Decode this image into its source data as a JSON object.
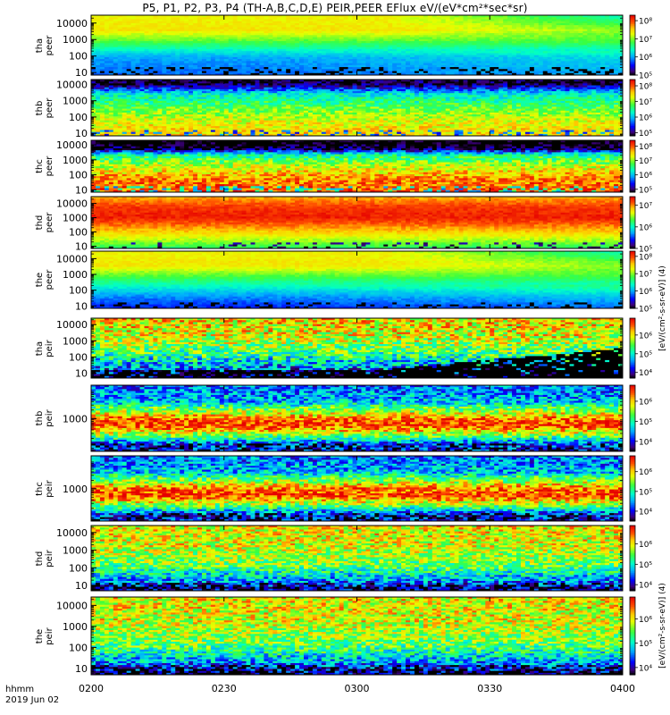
{
  "title": "P5, P1, P2, P3, P4 (TH-A,B,C,D,E) PEIR,PEER EFlux eV/(eV*cm²*sec*sr)",
  "footer": {
    "time_label": "hhmm",
    "date_label": "2019 Jun 02"
  },
  "colorbar_label_peer": "[eV/(cm²-s-sr-eV)] (4)",
  "colorbar_label_peir": "[eV/(cm²-s-sr-eV)] (4)",
  "chart_data": {
    "type": "heatmap",
    "x_axis": {
      "ticks": [
        "0200",
        "0230",
        "0300",
        "0330",
        "0400"
      ],
      "range": [
        "0200",
        "0400"
      ]
    },
    "y_scale": "log",
    "colorbar_scale": "log",
    "panels": [
      {
        "id": "tha_peer",
        "label": "tha\npeer",
        "yticks": [
          "10",
          "100",
          "1000",
          "10000"
        ],
        "ylim": [
          7,
          30000
        ],
        "cbar_ticks": [
          "10⁵",
          "10⁶",
          "10⁷",
          "10⁸"
        ],
        "cbar_range": [
          5,
          8.3
        ],
        "bands": [
          [
            0,
            5.8
          ],
          [
            0.3,
            6.0
          ],
          [
            0.55,
            6.8
          ],
          [
            0.75,
            7.4
          ],
          [
            1,
            7.3
          ]
        ],
        "decay": 0.9,
        "noise": 0.05
      },
      {
        "id": "thb_peer",
        "label": "thb\npeer",
        "yticks": [
          "10",
          "100",
          "1000",
          "10000"
        ],
        "ylim": [
          7,
          20000
        ],
        "cbar_ticks": [
          "10⁵",
          "10⁶",
          "10⁷",
          "10⁸"
        ],
        "cbar_range": [
          4.8,
          8.4
        ],
        "bands": [
          [
            0,
            7.5
          ],
          [
            0.25,
            7.3
          ],
          [
            0.5,
            6.8
          ],
          [
            0.75,
            6.2
          ],
          [
            0.86,
            5.3
          ],
          [
            0.92,
            4.9
          ],
          [
            1,
            4.8
          ]
        ],
        "decay": 0,
        "noise": 0.2
      },
      {
        "id": "thc_peer",
        "label": "thc\npeer",
        "yticks": [
          "10",
          "100",
          "1000",
          "10000"
        ],
        "ylim": [
          7,
          20000
        ],
        "cbar_ticks": [
          "10⁵",
          "10⁶",
          "10⁷",
          "10⁸"
        ],
        "cbar_range": [
          4.8,
          8.4
        ],
        "bands": [
          [
            0,
            8.0
          ],
          [
            0.25,
            7.8
          ],
          [
            0.5,
            7.2
          ],
          [
            0.72,
            6.4
          ],
          [
            0.82,
            5.0
          ],
          [
            0.92,
            4.6
          ],
          [
            1,
            4.5
          ]
        ],
        "decay": 0,
        "noise": 0.25
      },
      {
        "id": "thd_peer",
        "label": "thd\npeer",
        "yticks": [
          "10",
          "100",
          "1000",
          "10000"
        ],
        "ylim": [
          7,
          30000
        ],
        "cbar_ticks": [
          "10⁵",
          "10⁶",
          "10⁷"
        ],
        "cbar_range": [
          5,
          7.4
        ],
        "bands": [
          [
            0,
            6.2
          ],
          [
            0.3,
            6.8
          ],
          [
            0.6,
            7.3
          ],
          [
            0.8,
            7.2
          ],
          [
            1,
            6.9
          ]
        ],
        "decay": 0,
        "noise": 0.05
      },
      {
        "id": "the_peer",
        "label": "the\npeer",
        "yticks": [
          "10",
          "100",
          "1000",
          "10000"
        ],
        "ylim": [
          7,
          30000
        ],
        "cbar_ticks": [
          "10⁵",
          "10⁶",
          "10⁷",
          "10⁸"
        ],
        "cbar_range": [
          5,
          8.3
        ],
        "bands": [
          [
            0,
            5.6
          ],
          [
            0.2,
            5.9
          ],
          [
            0.55,
            6.8
          ],
          [
            0.75,
            7.4
          ],
          [
            1,
            7.3
          ]
        ],
        "decay": 0.9,
        "noise": 0.05
      },
      {
        "id": "tha_peir",
        "label": "tha\npeir",
        "yticks": [
          "10",
          "100",
          "1000",
          "10000"
        ],
        "ylim": [
          5,
          25000
        ],
        "cbar_ticks": [
          "10⁴",
          "10⁵",
          "10⁶"
        ],
        "cbar_range": [
          3.7,
          6.9
        ],
        "bands": [
          [
            0,
            3.8
          ],
          [
            0.15,
            4.5
          ],
          [
            0.4,
            5.3
          ],
          [
            0.7,
            5.9
          ],
          [
            1,
            6.1
          ]
        ],
        "decay": 0,
        "noise": 0.35,
        "void_growth": true
      },
      {
        "id": "thb_peir",
        "label": "thb\npeir",
        "yticks": [
          "1000"
        ],
        "ylim": [
          70,
          15000
        ],
        "cbar_ticks": [
          "10⁴",
          "10⁵",
          "10⁶"
        ],
        "cbar_range": [
          3.5,
          6.8
        ],
        "bands": [
          [
            0,
            4.0
          ],
          [
            0.12,
            4.3
          ],
          [
            0.25,
            5.5
          ],
          [
            0.4,
            6.6
          ],
          [
            0.5,
            6.3
          ],
          [
            0.6,
            5.6
          ],
          [
            0.75,
            4.6
          ],
          [
            1,
            4.3
          ]
        ],
        "decay": 0,
        "noise": 0.3
      },
      {
        "id": "thc_peir",
        "label": "thc\npeir",
        "yticks": [
          "1000"
        ],
        "ylim": [
          70,
          15000
        ],
        "cbar_ticks": [
          "10⁴",
          "10⁵",
          "10⁶"
        ],
        "cbar_range": [
          3.5,
          6.8
        ],
        "bands": [
          [
            0,
            4.0
          ],
          [
            0.12,
            4.3
          ],
          [
            0.25,
            5.5
          ],
          [
            0.4,
            6.6
          ],
          [
            0.5,
            6.3
          ],
          [
            0.6,
            5.6
          ],
          [
            0.75,
            4.6
          ],
          [
            1,
            4.3
          ]
        ],
        "decay": 0,
        "noise": 0.3
      },
      {
        "id": "thd_peir",
        "label": "thd\npeir",
        "yticks": [
          "10",
          "100",
          "1000",
          "10000"
        ],
        "ylim": [
          5,
          25000
        ],
        "cbar_ticks": [
          "10⁴",
          "10⁵",
          "10⁶"
        ],
        "cbar_range": [
          3.7,
          6.9
        ],
        "bands": [
          [
            0,
            3.9
          ],
          [
            0.15,
            4.6
          ],
          [
            0.4,
            5.5
          ],
          [
            0.7,
            5.9
          ],
          [
            1,
            6.0
          ]
        ],
        "decay": 0,
        "noise": 0.3
      },
      {
        "id": "the_peir",
        "label": "the\npeir",
        "yticks": [
          "10",
          "100",
          "1000",
          "10000"
        ],
        "ylim": [
          5,
          25000
        ],
        "cbar_ticks": [
          "10⁴",
          "10⁵",
          "10⁶"
        ],
        "cbar_range": [
          3.7,
          6.9
        ],
        "bands": [
          [
            0,
            3.9
          ],
          [
            0.15,
            4.6
          ],
          [
            0.4,
            5.5
          ],
          [
            0.7,
            5.9
          ],
          [
            1,
            6.0
          ]
        ],
        "decay": 0,
        "noise": 0.3
      }
    ]
  }
}
